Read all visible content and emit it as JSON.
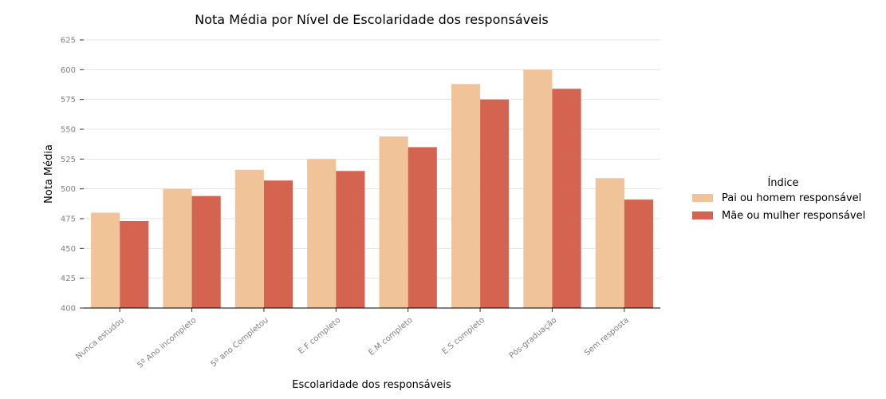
{
  "chart_data": {
    "type": "bar",
    "title": "Nota Média por Nível de Escolaridade dos responsáveis",
    "xlabel": "Escolaridade dos responsáveis",
    "ylabel": "Nota Média",
    "ylim": [
      400,
      625
    ],
    "yticks": [
      400,
      425,
      450,
      475,
      500,
      525,
      550,
      575,
      600,
      625
    ],
    "grid": "horizontal",
    "legend_title": "Índice",
    "legend_position": "right",
    "categories": [
      "Nunca estudou",
      "5º Ano incompleto",
      "5º ano Completou",
      "E.F completo",
      "E.M completo",
      "E.S completo",
      "Pós-graduação",
      "Sem resposta"
    ],
    "series": [
      {
        "name": "Pai ou homem responsável",
        "color": "#f0c498",
        "values": [
          480,
          500,
          516,
          525,
          544,
          588,
          600,
          509
        ]
      },
      {
        "name": "Mãe ou mulher responsável",
        "color": "#d46450",
        "values": [
          473,
          494,
          507,
          515,
          535,
          575,
          584,
          491
        ]
      }
    ]
  }
}
